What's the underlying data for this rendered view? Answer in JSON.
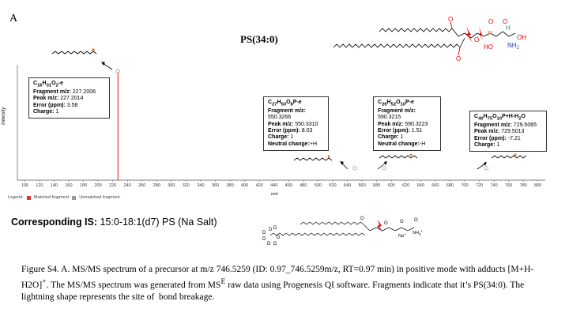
{
  "panel_letter": "A",
  "title": "PS(34:0)",
  "headgroup_labels": {
    "o1": "O",
    "o2": "O",
    "o3": "O",
    "o4": "O",
    "o5": "O",
    "p": "P",
    "ho": "HO",
    "h": "H",
    "oh": "OH",
    "nh2": "NH",
    "nh2_sub": "2"
  },
  "fragments": [
    {
      "formula_html": "C<sub>16</sub>H<sub>31</sub>O<sub>2</sub>-e",
      "fragment_mz": "227.2006",
      "peak_mz": "227.2014",
      "error_ppm": "3.58",
      "charge": "1",
      "neutral_change": ""
    },
    {
      "formula_html": "C<sub>27</sub>H<sub>50</sub>O<sub>8</sub>P-e",
      "fragment_mz": "550.3266",
      "peak_mz": "550.3310",
      "error_ppm": "8.03",
      "charge": "1",
      "neutral_change": "+H"
    },
    {
      "formula_html": "C<sub>29</sub>H<sub>52</sub>O<sub>10</sub>P-e",
      "fragment_mz": "590.3215",
      "peak_mz": "590.3223",
      "error_ppm": "1.51",
      "charge": "1",
      "neutral_change": "-H"
    },
    {
      "formula_html": "C<sub>40</sub>H<sub>75</sub>O<sub>10</sub>P+H-H<sub>2</sub>O",
      "fragment_mz": "729.5065",
      "peak_mz": "729.5013",
      "error_ppm": "-7.21",
      "charge": "1",
      "neutral_change": ""
    }
  ],
  "field_labels": {
    "fragment_mz": "Fragment m/z:",
    "peak_mz": "Peak m/z:",
    "error_ppm": "Error (ppm):",
    "charge": "Charge:",
    "neutral_change": "Neutral change:"
  },
  "chart_data": {
    "type": "bar",
    "ylabel": "Intensity",
    "xlabel": "m/z",
    "xlim": [
      90,
      810
    ],
    "ylim": [
      0,
      1
    ],
    "xticks": [
      100,
      120,
      140,
      160,
      180,
      200,
      220,
      240,
      260,
      280,
      300,
      320,
      340,
      360,
      380,
      400,
      420,
      440,
      460,
      480,
      500,
      520,
      540,
      560,
      580,
      600,
      620,
      640,
      660,
      680,
      700,
      720,
      740,
      760,
      780,
      800
    ],
    "matched": [
      {
        "mz": 227.2014,
        "intensity": 1.0
      }
    ],
    "unmatched_markers": [
      {
        "mz": 227.2014,
        "level": 1.0
      },
      {
        "mz": 550.331,
        "level": 0.11
      },
      {
        "mz": 590.3223,
        "level": 0.11
      },
      {
        "mz": 729.5013,
        "level": 0.11
      }
    ],
    "colors": {
      "matched": "#e03030",
      "unmatched": "#999999",
      "axis": "#555555"
    },
    "legend": {
      "label": "Legend:",
      "items": [
        {
          "name": "Matched fragment",
          "color": "#e03030"
        },
        {
          "name": "Unmatched fragment",
          "color": "#999999"
        }
      ]
    }
  },
  "is_label": "Corresponding IS:",
  "is_value": "15:0-18:1(d7) PS (Na Salt)",
  "is_struct_labels": {
    "d": "D",
    "na": "Na",
    "na_sup": "+",
    "o": "O",
    "nh3": "NH",
    "nh3_sub": "3",
    "nh3_sup": "+"
  },
  "caption_html": "Figure S4. A. MS/MS spectrum of a precursor at m/z 746.5259 (ID: 0.97_746.5259m/z, RT=0.97 min) in positive mode with adducts [M+H-H2O]<sup>+</sup>. The MS/MS spectrum was generated from MS<sup>E</sup> raw data using Progenesis QI software. Fragments indicate that it&#8217;s PS(34:0). The lightning shape represents the site of&nbsp; bond breakage."
}
